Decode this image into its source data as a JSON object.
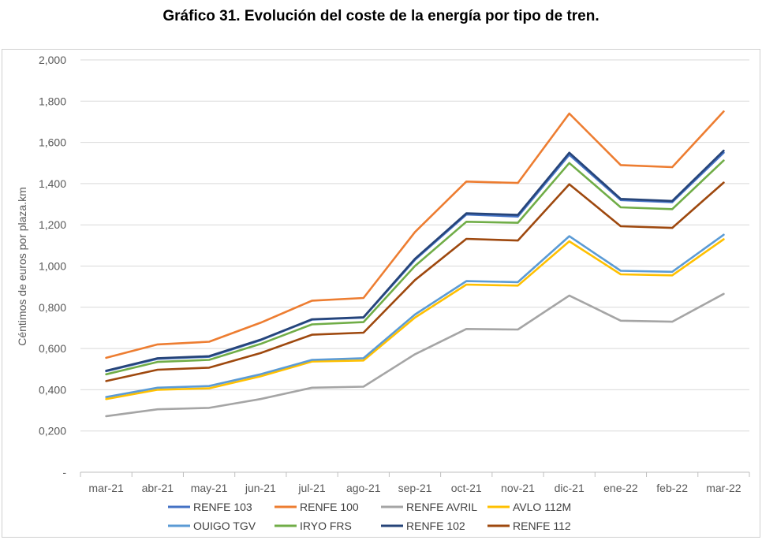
{
  "chart_data": {
    "type": "line",
    "title": "Gráfico 31. Evolución del coste de la energía por tipo de tren.",
    "xlabel": "",
    "ylabel": "Céntimos de euros por plaza.km",
    "ylim": [
      0,
      2
    ],
    "yticks": [
      {
        "value": 0,
        "label": "-"
      },
      {
        "value": 0.2,
        "label": "0,200"
      },
      {
        "value": 0.4,
        "label": "0,400"
      },
      {
        "value": 0.6,
        "label": "0,600"
      },
      {
        "value": 0.8,
        "label": "0,800"
      },
      {
        "value": 1.0,
        "label": "1,000"
      },
      {
        "value": 1.2,
        "label": "1,200"
      },
      {
        "value": 1.4,
        "label": "1,400"
      },
      {
        "value": 1.6,
        "label": "1,600"
      },
      {
        "value": 1.8,
        "label": "1,800"
      },
      {
        "value": 2.0,
        "label": "2,000"
      }
    ],
    "categories": [
      "mar-21",
      "abr-21",
      "may-21",
      "jun-21",
      "jul-21",
      "ago-21",
      "sep-21",
      "oct-21",
      "nov-21",
      "dic-21",
      "ene-22",
      "feb-22",
      "mar-22"
    ],
    "grid": true,
    "legend_position": "bottom",
    "series": [
      {
        "name": "RENFE 103",
        "color": "#4472C4",
        "values": [
          0.49,
          0.55,
          0.56,
          0.64,
          0.74,
          0.75,
          1.03,
          1.25,
          1.24,
          1.54,
          1.32,
          1.31,
          1.55
        ]
      },
      {
        "name": "RENFE 100",
        "color": "#ED7D31",
        "values": [
          0.555,
          0.62,
          0.633,
          0.725,
          0.832,
          0.845,
          1.165,
          1.41,
          1.403,
          1.74,
          1.49,
          1.48,
          1.75
        ]
      },
      {
        "name": "RENFE AVRIL",
        "color": "#A5A5A5",
        "values": [
          0.272,
          0.305,
          0.312,
          0.355,
          0.41,
          0.415,
          0.572,
          0.695,
          0.692,
          0.857,
          0.735,
          0.73,
          0.865
        ]
      },
      {
        "name": "AVLO 112M",
        "color": "#FFC000",
        "values": [
          0.355,
          0.4,
          0.407,
          0.465,
          0.537,
          0.542,
          0.75,
          0.91,
          0.905,
          1.12,
          0.96,
          0.955,
          1.13
        ]
      },
      {
        "name": "OUIGO TGV",
        "color": "#5B9BD5",
        "values": [
          0.365,
          0.41,
          0.418,
          0.475,
          0.545,
          0.553,
          0.765,
          0.927,
          0.922,
          1.145,
          0.977,
          0.972,
          1.152
        ]
      },
      {
        "name": "IRYO FRS",
        "color": "#70AD47",
        "values": [
          0.475,
          0.535,
          0.545,
          0.622,
          0.717,
          0.728,
          1.0,
          1.215,
          1.21,
          1.5,
          1.285,
          1.276,
          1.512
        ]
      },
      {
        "name": "RENFE 102",
        "color": "#264478",
        "values": [
          0.492,
          0.553,
          0.563,
          0.643,
          0.742,
          0.752,
          1.035,
          1.256,
          1.248,
          1.55,
          1.326,
          1.316,
          1.56
        ]
      },
      {
        "name": "RENFE 112",
        "color": "#9E480E",
        "values": [
          0.442,
          0.497,
          0.507,
          0.578,
          0.667,
          0.677,
          0.932,
          1.132,
          1.124,
          1.397,
          1.193,
          1.185,
          1.405
        ]
      }
    ]
  }
}
